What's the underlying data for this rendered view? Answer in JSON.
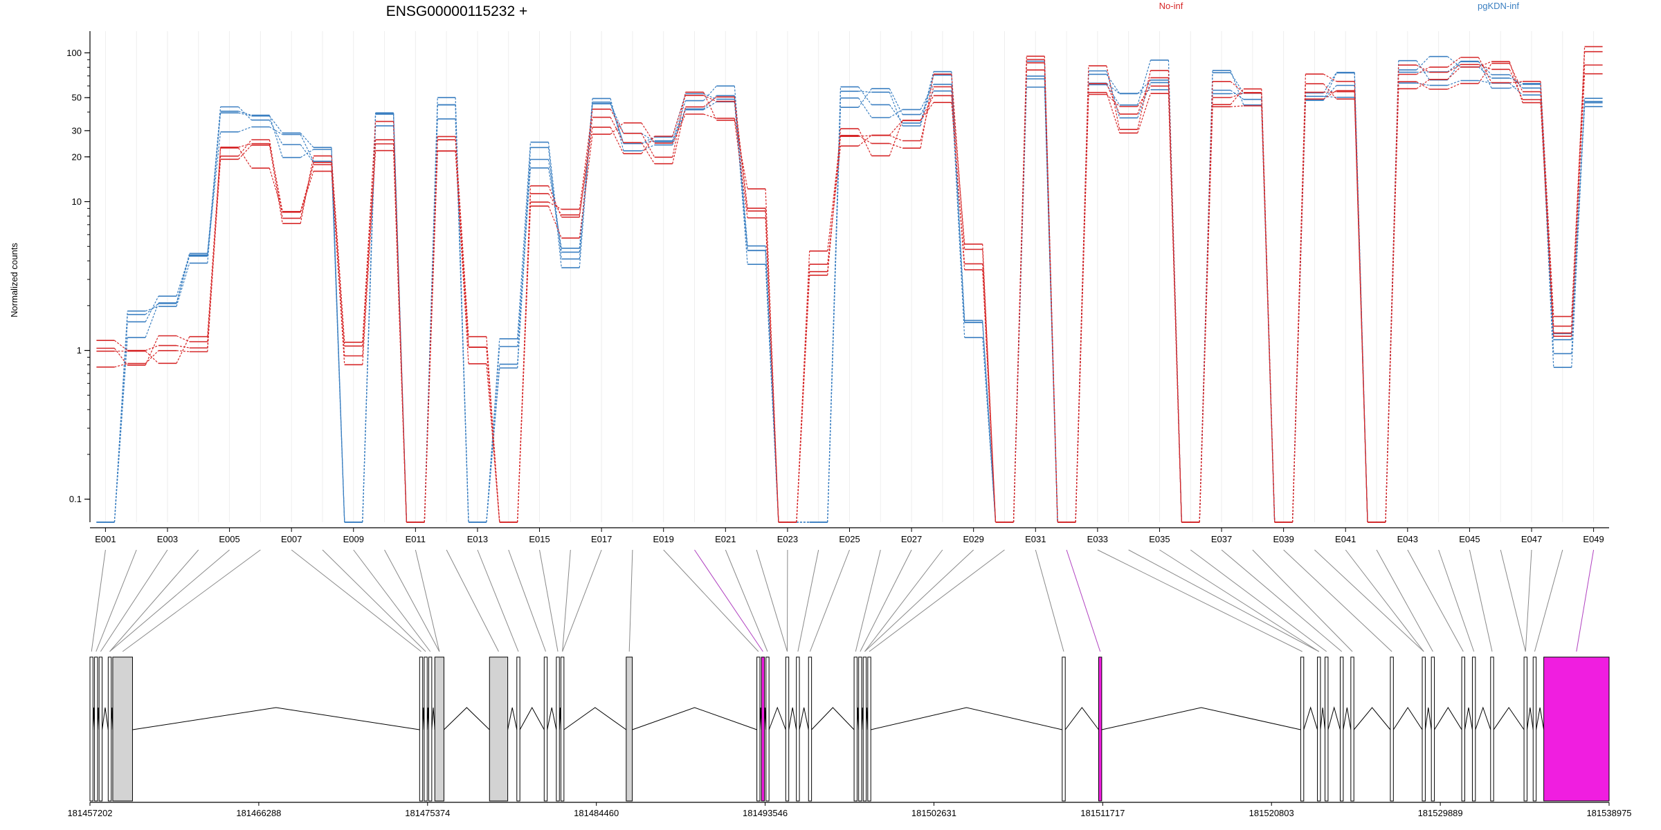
{
  "chart_data": {
    "type": "line",
    "title": "ENSG00000115232 +",
    "xlabel": "",
    "ylabel": "Normalized counts",
    "yscale": "log",
    "ylim": [
      0.07,
      140
    ],
    "yticks": [
      {
        "value": 0.1,
        "label": "0.1"
      },
      {
        "value": 1,
        "label": "1"
      },
      {
        "value": 10,
        "label": "10"
      },
      {
        "value": 20,
        "label": "20"
      },
      {
        "value": 30,
        "label": "30"
      },
      {
        "value": 50,
        "label": "50"
      },
      {
        "value": 100,
        "label": "100"
      }
    ],
    "legend_position": "top",
    "legend": [
      {
        "name": "No-inf",
        "color": "#d62728"
      },
      {
        "name": "pgKDN-inf",
        "color": "#3a7fc1"
      }
    ],
    "exon_tick_labels": [
      "E001",
      "E003",
      "E005",
      "E007",
      "E009",
      "E011",
      "E013",
      "E015",
      "E017",
      "E019",
      "E021",
      "E023",
      "E025",
      "E027",
      "E029",
      "E031",
      "E033",
      "E035",
      "E037",
      "E039",
      "E041",
      "E043",
      "E045",
      "E047",
      "E049"
    ],
    "red_counts": [
      1,
      1,
      1,
      1,
      25,
      22,
      8,
      17,
      1,
      27,
      0.07,
      27,
      1,
      0.07,
      11,
      7,
      33,
      27,
      21,
      44,
      40,
      10,
      0.07,
      4,
      25,
      22,
      27,
      60,
      4,
      0.07,
      82,
      0.07,
      63,
      35,
      67,
      0.07,
      50,
      48,
      0.07,
      55,
      55,
      0.07,
      73,
      73,
      75,
      70,
      55,
      1.6,
      95
    ],
    "blue_counts": [
      0.07,
      1.6,
      2.3,
      4,
      33,
      32,
      22,
      22,
      0.07,
      32,
      0.07,
      40,
      0.07,
      1,
      22,
      4.5,
      42,
      26,
      23,
      48,
      55,
      4,
      0.07,
      0.07,
      45,
      45,
      40,
      72,
      1.4,
      0.07,
      72,
      0.07,
      69,
      48,
      71,
      0.07,
      60,
      56,
      0.07,
      56,
      62,
      0.07,
      75,
      73,
      72,
      67,
      52,
      1,
      48
    ],
    "genomic_axis_labels": [
      "181457202",
      "181466288",
      "181475374",
      "181484460",
      "181493546",
      "181502631",
      "181511717",
      "181520803",
      "181529889",
      "181538975"
    ],
    "colors": {
      "red": "#d62728",
      "blue": "#3a7fc1",
      "exon": "#d3d3d3",
      "highlight": "#f01ee0",
      "connector": "#888888"
    }
  }
}
